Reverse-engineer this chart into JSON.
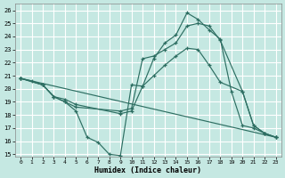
{
  "xlabel": "Humidex (Indice chaleur)",
  "bg_color": "#c5e8e2",
  "grid_color": "#ffffff",
  "line_color": "#2d6e62",
  "xlim": [
    -0.5,
    23.5
  ],
  "ylim": [
    14.8,
    26.5
  ],
  "xticks": [
    0,
    1,
    2,
    3,
    4,
    5,
    6,
    7,
    8,
    9,
    10,
    11,
    12,
    13,
    14,
    15,
    16,
    17,
    18,
    19,
    20,
    21,
    22,
    23
  ],
  "yticks": [
    15,
    16,
    17,
    18,
    19,
    20,
    21,
    22,
    23,
    24,
    25,
    26
  ],
  "line1_x": [
    0,
    1,
    2,
    3,
    4,
    5,
    6,
    7,
    8,
    9,
    10,
    11,
    12,
    13,
    14,
    15,
    16,
    17,
    18,
    19,
    20,
    21,
    22,
    23
  ],
  "line1_y": [
    20.8,
    20.6,
    20.3,
    19.4,
    19.0,
    18.3,
    16.3,
    15.9,
    15.0,
    14.9,
    20.3,
    20.2,
    22.3,
    23.5,
    24.1,
    25.8,
    25.3,
    24.5,
    23.8,
    19.8,
    17.2,
    17.0,
    16.6,
    16.3
  ],
  "line2_x": [
    0,
    2,
    3,
    4,
    5,
    9,
    10,
    11,
    12,
    13,
    14,
    15,
    16,
    17,
    18,
    20,
    21,
    22,
    23
  ],
  "line2_y": [
    20.8,
    20.3,
    19.4,
    19.0,
    18.6,
    18.3,
    18.5,
    22.3,
    22.5,
    23.0,
    23.5,
    24.8,
    25.0,
    24.8,
    23.7,
    19.8,
    17.2,
    16.6,
    16.3
  ],
  "line3_x": [
    0,
    2,
    3,
    4,
    5,
    9,
    10,
    11,
    12,
    13,
    14,
    15,
    16,
    17,
    18,
    20,
    21,
    22,
    23
  ],
  "line3_y": [
    20.8,
    20.3,
    19.4,
    19.2,
    18.8,
    18.1,
    18.3,
    20.2,
    21.0,
    21.8,
    22.5,
    23.1,
    23.0,
    21.8,
    20.5,
    19.8,
    17.2,
    16.6,
    16.3
  ],
  "line4_x": [
    0,
    23
  ],
  "line4_y": [
    20.8,
    16.3
  ]
}
